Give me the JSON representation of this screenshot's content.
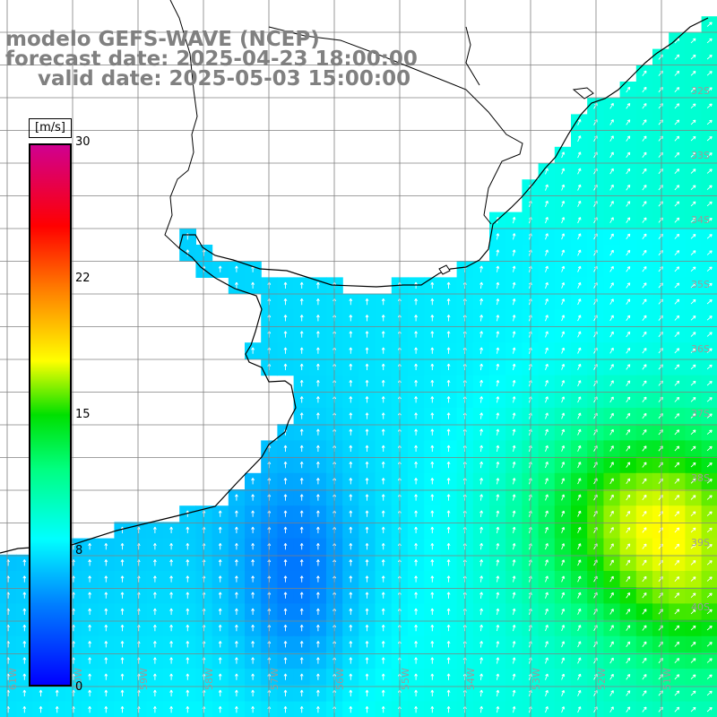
{
  "title": {
    "line1": "modelo GEFS-WAVE (NCEP)",
    "line2": "forecast date: 2025-04-23 18:00:00",
    "line3": "valid date: 2025-05-03 15:00:00"
  },
  "colorbar": {
    "units": "[m/s]",
    "ticks": [
      "30",
      "22",
      "15",
      "8",
      "0"
    ],
    "tick_values": [
      30,
      22,
      15,
      8,
      0
    ],
    "min": 0,
    "max": 30,
    "colors": [
      "#0000ff",
      "#0080ff",
      "#00ffff",
      "#00ff80",
      "#00e000",
      "#ffff00",
      "#ff8000",
      "#ff0000",
      "#d00090"
    ]
  },
  "grid": {
    "lat_labels": [
      "32S",
      "33S",
      "34S",
      "35S",
      "36S",
      "37S",
      "38S",
      "39S",
      "40S"
    ],
    "lon_labels": [
      "61W",
      "60W",
      "59W",
      "58W",
      "57W",
      "56W",
      "55W",
      "54W",
      "53W",
      "52W",
      "51W"
    ]
  },
  "colors": {
    "land": "#ffffff",
    "coast": "#000000",
    "grid": "#808080",
    "arrow": "#ffffff",
    "title": "#808080"
  }
}
